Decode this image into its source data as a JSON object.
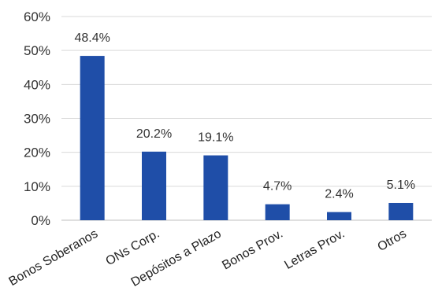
{
  "chart_data": {
    "type": "bar",
    "categories": [
      "Bonos Soberanos",
      "ONs Corp.",
      "Depósitos a Plazo",
      "Bonos Prov.",
      "Letras Prov.",
      "Otros"
    ],
    "values": [
      48.4,
      20.2,
      19.1,
      4.7,
      2.4,
      5.1
    ],
    "data_labels": [
      "48.4%",
      "20.2%",
      "19.1%",
      "4.7%",
      "2.4%",
      "5.1%"
    ],
    "y_ticks": [
      "0%",
      "10%",
      "20%",
      "30%",
      "40%",
      "50%",
      "60%"
    ],
    "y_tick_values": [
      0,
      10,
      20,
      30,
      40,
      50,
      60
    ],
    "ylim": [
      0,
      60
    ],
    "grid": true,
    "legend": "none",
    "title": "",
    "xlabel": "",
    "ylabel": "",
    "colors": {
      "bar": "#1f4ea8",
      "grid": "#d9d9d9",
      "axis": "#bfbfbf"
    }
  }
}
